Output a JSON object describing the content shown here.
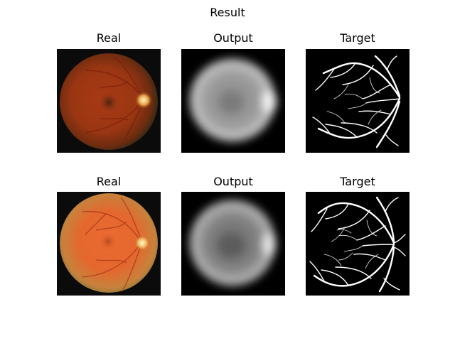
{
  "figure": {
    "title": "Result"
  },
  "rows": [
    {
      "panels": [
        {
          "title": "Real"
        },
        {
          "title": "Output"
        },
        {
          "title": "Target"
        }
      ]
    },
    {
      "panels": [
        {
          "title": "Real"
        },
        {
          "title": "Output"
        },
        {
          "title": "Target"
        }
      ]
    }
  ]
}
